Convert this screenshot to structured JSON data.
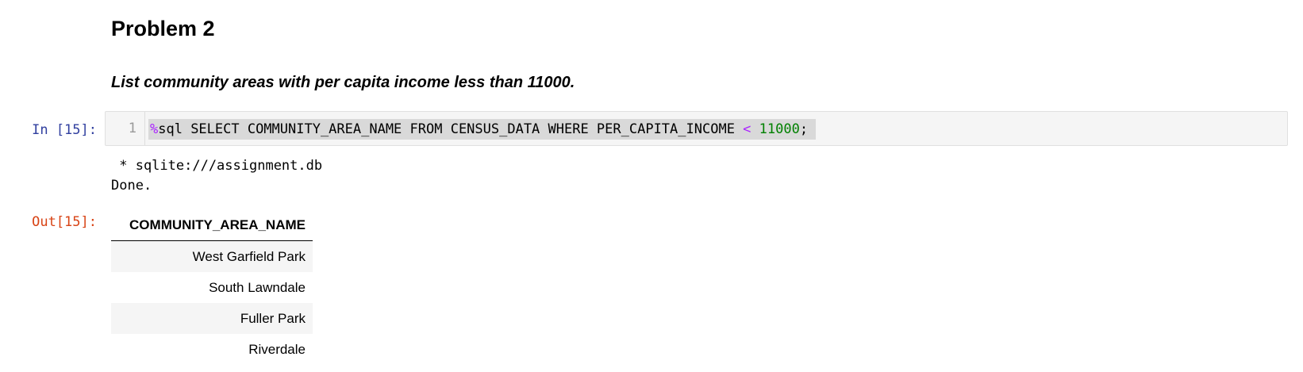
{
  "markdown": {
    "heading": "Problem 2",
    "text": "List community areas with per capita income less than 11000."
  },
  "cell": {
    "in_prompt": "In [15]:",
    "out_prompt": "Out[15]:",
    "line_number": "1",
    "code": {
      "magic": "%",
      "part1": "sql SELECT COMMUNITY_AREA_NAME FROM CENSUS_DATA WHERE PER_CAPITA_INCOME ",
      "operator": "<",
      "space": " ",
      "number": "11000",
      "end": ";"
    },
    "stdout": " * sqlite:///assignment.db\nDone."
  },
  "result_table": {
    "header": "COMMUNITY_AREA_NAME",
    "rows": [
      "West Garfield Park",
      "South Lawndale",
      "Fuller Park",
      "Riverdale"
    ]
  },
  "colors": {
    "in_prompt": "#303f9f",
    "out_prompt": "#d84315",
    "magic": "#aa22ff",
    "number": "#008000"
  }
}
